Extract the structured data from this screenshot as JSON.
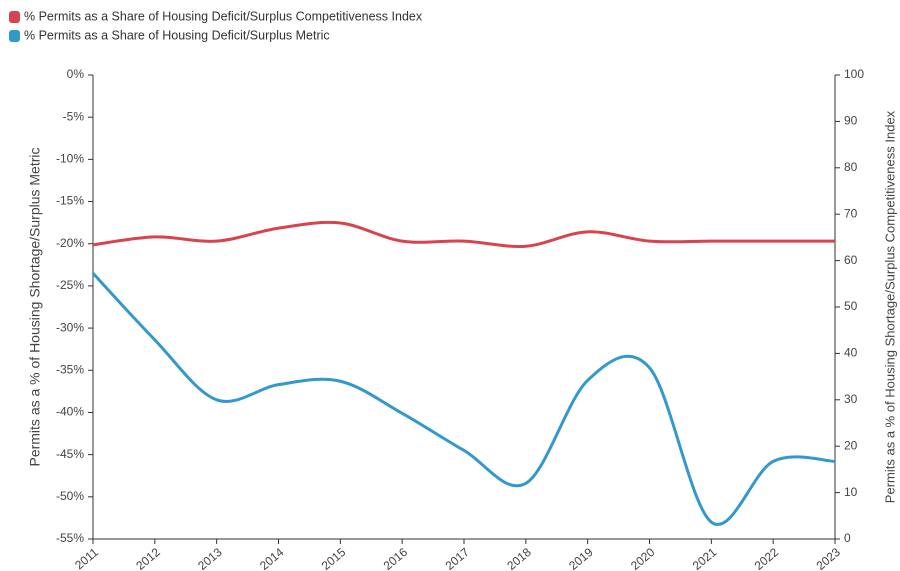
{
  "chart_data": {
    "type": "line",
    "y_label": "Permits as a % of Housing Shortage/Surplus Metric",
    "y2_label": "Permits as a % of Housing Shortage/Surplus Competitiveness Index",
    "categories": [
      "2011",
      "2012",
      "2013",
      "2014",
      "2015",
      "2016",
      "2017",
      "2018",
      "2019",
      "2020",
      "2021",
      "2022",
      "2023"
    ],
    "series": [
      {
        "name": "% Permits as a Share of Housing Deficit/Surplus Competitiveness Index",
        "color": "#d9434e",
        "axis": "y2",
        "values": [
          63.4,
          65.1,
          64.2,
          67.0,
          68.1,
          64.2,
          64.2,
          63.1,
          66.2,
          64.2,
          64.2,
          64.2,
          64.2
        ]
      },
      {
        "name": "% Permits as a Share of Housing Deficit/Surplus Metric",
        "color": "#3399cc",
        "values": [
          -23.5,
          -31.4,
          -38.5,
          -36.7,
          -36.3,
          -40.1,
          -44.5,
          -48.4,
          -36.2,
          -34.7,
          -53.0,
          -45.8,
          -45.8
        ]
      }
    ],
    "ylim": [
      -55,
      0
    ],
    "yticks": [
      {
        "value": 0,
        "label": "0%"
      },
      {
        "value": -5,
        "label": "-5%"
      },
      {
        "value": -10,
        "label": "-10%"
      },
      {
        "value": -15,
        "label": "-15%"
      },
      {
        "value": -20,
        "label": "-20%"
      },
      {
        "value": -25,
        "label": "-25%"
      },
      {
        "value": -30,
        "label": "-30%"
      },
      {
        "value": -35,
        "label": "-35%"
      },
      {
        "value": -40,
        "label": "-40%"
      },
      {
        "value": -45,
        "label": "-45%"
      },
      {
        "value": -50,
        "label": "-50%"
      },
      {
        "value": -55,
        "label": "-55%"
      }
    ],
    "y2lim": [
      0,
      100
    ],
    "y2ticks": [
      0,
      10,
      20,
      30,
      40,
      50,
      60,
      70,
      80,
      90,
      100
    ],
    "legend": "top-left"
  }
}
